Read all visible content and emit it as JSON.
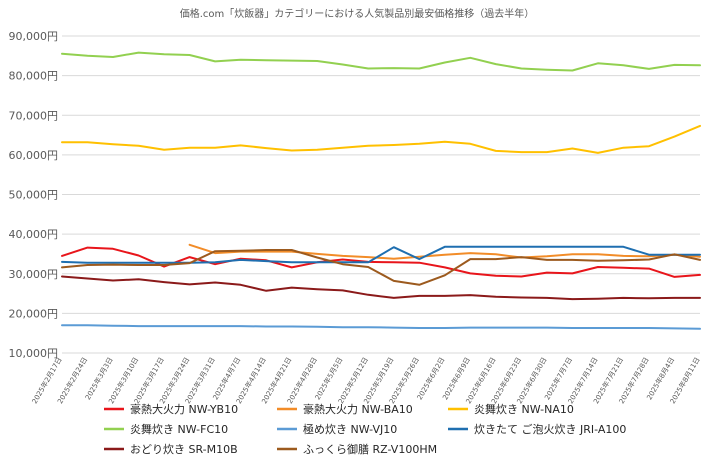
{
  "chart_data": {
    "type": "line",
    "title": "価格.com「炊飯器」カテゴリーにおける人気製品別最安価格推移（過去半年）",
    "xlabel": "",
    "ylabel": "",
    "ylim": [
      10000,
      90000
    ],
    "yticks": [
      10000,
      20000,
      30000,
      40000,
      50000,
      60000,
      70000,
      80000,
      90000
    ],
    "ytick_labels": [
      "10,000円",
      "20,000円",
      "30,000円",
      "40,000円",
      "50,000円",
      "60,000円",
      "70,000円",
      "80,000円",
      "90,000円"
    ],
    "grid": true,
    "legend_position": "bottom",
    "categories": [
      "2025年2月17日",
      "2025年2月24日",
      "2025年3月3日",
      "2025年3月10日",
      "2025年3月17日",
      "2025年3月24日",
      "2025年3月31日",
      "2025年4月7日",
      "2025年4月14日",
      "2025年4月21日",
      "2025年4月28日",
      "2025年5月5日",
      "2025年5月12日",
      "2025年5月19日",
      "2025年5月26日",
      "2025年6月2日",
      "2025年6月9日",
      "2025年6月16日",
      "2025年6月23日",
      "2025年6月30日",
      "2025年7月7日",
      "2025年7月14日",
      "2025年7月21日",
      "2025年7月28日",
      "2025年8月4日",
      "2025年8月11日"
    ],
    "series": [
      {
        "name": "豪熱大火力 NW-YB10",
        "color": "#e8151b",
        "values": [
          34500,
          36600,
          36300,
          34600,
          31800,
          34200,
          32400,
          33800,
          33400,
          31600,
          32900,
          33600,
          33000,
          32900,
          32800,
          31600,
          30100,
          29500,
          29300,
          30300,
          30100,
          31700,
          31500,
          31300,
          29200,
          29700
        ]
      },
      {
        "name": "豪熱大火力 NW-BA10",
        "color": "#f28c28",
        "values": [
          null,
          null,
          null,
          null,
          null,
          37300,
          35200,
          35600,
          35600,
          35600,
          35000,
          34500,
          34200,
          33800,
          34300,
          34800,
          35200,
          34900,
          34100,
          34400,
          34900,
          34900,
          34500,
          34400,
          34800,
          34300
        ]
      },
      {
        "name": "炎舞炊き NW-NA10",
        "color": "#ffc000",
        "values": [
          63200,
          63200,
          62700,
          62300,
          61300,
          61800,
          61800,
          62400,
          61700,
          61100,
          61300,
          61800,
          62300,
          62500,
          62800,
          63300,
          62800,
          61000,
          60700,
          60700,
          61600,
          60500,
          61800,
          62200,
          64600,
          67300
        ]
      },
      {
        "name": "炎舞炊き NW-FC10",
        "color": "#92d050",
        "values": [
          85500,
          85000,
          84700,
          85800,
          85400,
          85200,
          83600,
          84000,
          83900,
          83800,
          83700,
          82800,
          81800,
          81900,
          81800,
          83300,
          84500,
          82900,
          81800,
          81500,
          81300,
          83100,
          82600,
          81700,
          82700,
          82600
        ]
      },
      {
        "name": "極め炊き NW-VJ10",
        "color": "#5b9bd5",
        "values": [
          17000,
          17000,
          16900,
          16800,
          16800,
          16800,
          16800,
          16800,
          16700,
          16700,
          16600,
          16500,
          16500,
          16400,
          16300,
          16300,
          16400,
          16400,
          16400,
          16400,
          16300,
          16300,
          16300,
          16300,
          16200,
          16100
        ]
      },
      {
        "name": "炊きたて ご泡火炊き JRI-A100",
        "color": "#1f6fb0",
        "values": [
          33000,
          32800,
          32800,
          32800,
          32800,
          32800,
          32900,
          33500,
          33200,
          32900,
          32900,
          32900,
          32900,
          36700,
          33700,
          36800,
          36800,
          36800,
          36800,
          36800,
          36800,
          36800,
          36800,
          34800,
          34800,
          34800
        ]
      },
      {
        "name": "おどり炊き SR-M10B",
        "color": "#8b1a1a",
        "values": [
          29300,
          28800,
          28300,
          28600,
          27900,
          27300,
          27800,
          27200,
          25700,
          26500,
          26100,
          25800,
          24700,
          23900,
          24400,
          24400,
          24600,
          24200,
          24000,
          23900,
          23600,
          23700,
          23900,
          23800,
          23900,
          23900
        ]
      },
      {
        "name": "ふっくら御膳 RZ-V100HM",
        "color": "#9c5a1e",
        "values": [
          31600,
          32200,
          32300,
          32200,
          32200,
          32700,
          35700,
          35800,
          36000,
          36000,
          34100,
          32400,
          31700,
          28200,
          27200,
          29600,
          33700,
          33700,
          34200,
          33500,
          33500,
          33300,
          33400,
          33600,
          34900,
          33500
        ]
      }
    ]
  }
}
